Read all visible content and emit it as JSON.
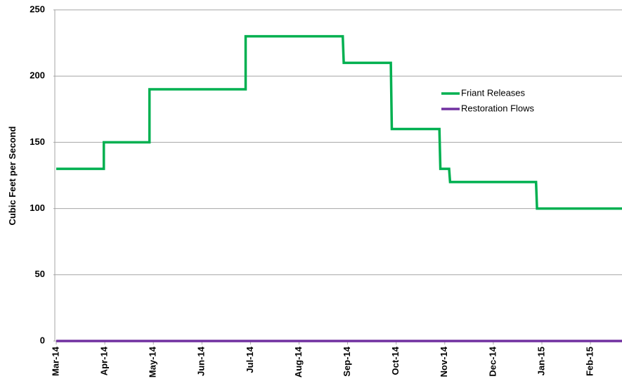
{
  "chart_data": {
    "type": "line",
    "y_label": "Cubic Feet per Second",
    "xlim": [
      0,
      11.65
    ],
    "xticks": [
      {
        "value": 0,
        "label": "Mar-14"
      },
      {
        "value": 1,
        "label": "Apr-14"
      },
      {
        "value": 2,
        "label": "May-14"
      },
      {
        "value": 3,
        "label": "Jun-14"
      },
      {
        "value": 4,
        "label": "Jul-14"
      },
      {
        "value": 5,
        "label": "Aug-14"
      },
      {
        "value": 6,
        "label": "Sep-14"
      },
      {
        "value": 7,
        "label": "Oct-14"
      },
      {
        "value": 8,
        "label": "Nov-14"
      },
      {
        "value": 9,
        "label": "Dec-14"
      },
      {
        "value": 10,
        "label": "Jan-15"
      },
      {
        "value": 11,
        "label": "Feb-15"
      }
    ],
    "ylim": [
      0,
      250
    ],
    "yticks": [
      0,
      50,
      100,
      150,
      200,
      250
    ],
    "grid": true,
    "legend": "right",
    "series": [
      {
        "name": "Friant Releases",
        "color": "#00b050",
        "x": [
          0,
          0.98,
          0.98,
          1.92,
          1.92,
          3.9,
          3.9,
          5.9,
          5.92,
          6.89,
          6.91,
          7.89,
          7.91,
          8.09,
          8.11,
          9.88,
          9.9,
          11.65
        ],
        "values": [
          130,
          130,
          150,
          150,
          190,
          190,
          230,
          230,
          210,
          210,
          160,
          160,
          130,
          130,
          120,
          120,
          100,
          100
        ]
      },
      {
        "name": "Restoration Flows",
        "color": "#7030a0",
        "x": [
          0,
          11.65
        ],
        "values": [
          0,
          0
        ]
      }
    ]
  }
}
